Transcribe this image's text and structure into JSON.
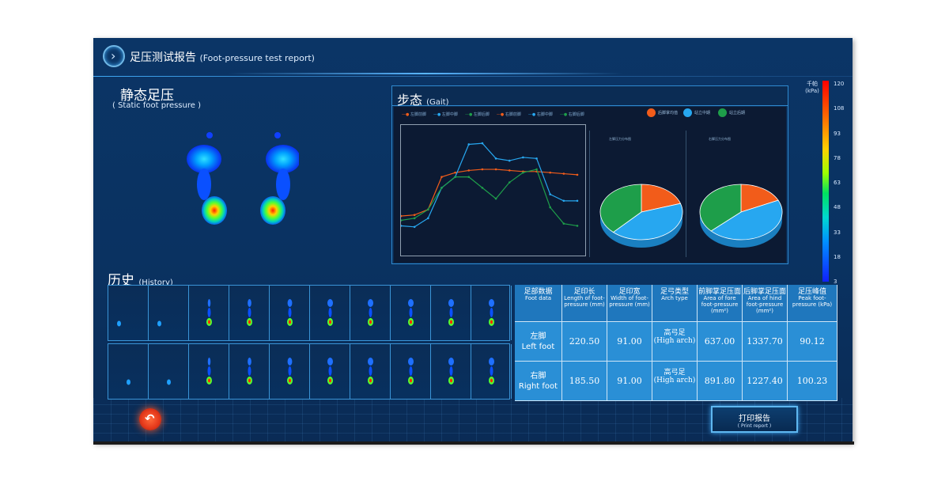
{
  "header": {
    "title_zh": "足压测试报告",
    "title_en": "(Foot-pressure test report)",
    "nav_icon": "chevron-right-icon"
  },
  "static_section": {
    "title_zh": "静态足压",
    "title_en": "( Static foot pressure )"
  },
  "gait_section": {
    "title_zh": "步态",
    "title_en": "(Gait)",
    "line_legend": [
      "左脚前脚",
      "左脚中脚",
      "左脚后脚",
      "右脚前脚",
      "右脚中脚",
      "右脚后脚"
    ],
    "pie_legend": [
      {
        "label": "后脚掌均值",
        "color": "#f25c1a"
      },
      {
        "label": "站立中期",
        "color": "#27a7f0"
      },
      {
        "label": "站立后期",
        "color": "#1e9e4a"
      }
    ],
    "pie_titles": [
      "左脚压力分布图",
      "右脚压力分布图"
    ]
  },
  "colorbar": {
    "unit": "千帕 (kPa)",
    "labels": [
      "120",
      "108",
      "93",
      "78",
      "63",
      "48",
      "33",
      "18",
      "3"
    ]
  },
  "history_section": {
    "title_zh": "历史",
    "title_en": "(History)"
  },
  "table": {
    "headers": [
      {
        "zh": "足部数据",
        "en": "Foot data"
      },
      {
        "zh": "足印长",
        "en": "Length of foot-pressure (mm)"
      },
      {
        "zh": "足印宽",
        "en": "Width of foot-pressure (mm)"
      },
      {
        "zh": "足弓类型",
        "en": "Arch type"
      },
      {
        "zh": "前脚掌足压面",
        "en": "Area of fore foot-pressure (mm²)"
      },
      {
        "zh": "后脚掌足压面",
        "en": "Area of hind foot-pressure (mm²)"
      },
      {
        "zh": "足压峰值",
        "en": "Peak foot-pressure (kPa)"
      }
    ],
    "rows": [
      {
        "label_zh": "左脚",
        "label_en": "Left foot",
        "length": "220.50",
        "width": "91.00",
        "arch_zh": "高弓足",
        "arch_en": "(High arch)",
        "fore_area": "637.00",
        "hind_area": "1337.70",
        "peak": "90.12"
      },
      {
        "label_zh": "右脚",
        "label_en": "Right foot",
        "length": "185.50",
        "width": "91.00",
        "arch_zh": "高弓足",
        "arch_en": "(High arch)",
        "fore_area": "891.80",
        "hind_area": "1227.40",
        "peak": "100.23"
      }
    ]
  },
  "buttons": {
    "print_zh": "打印报告",
    "print_en": "( Print report )",
    "back_icon": "undo-arrow-icon"
  },
  "colors": {
    "panel_border": "#2f8ad0",
    "table_header": "#1f77bd",
    "table_body": "#2a8fd6",
    "back_button": "#e63a1c"
  },
  "chart_data": [
    {
      "type": "line",
      "series": [
        {
          "values": [
            32,
            33,
            38,
            68,
            72,
            74,
            75,
            75,
            74,
            73,
            73,
            72,
            71,
            70
          ]
        },
        {
          "values": [
            23,
            22,
            30,
            58,
            68,
            98,
            99,
            85,
            83,
            86,
            85,
            52,
            46,
            46
          ]
        },
        {
          "values": [
            28,
            30,
            38,
            58,
            68,
            68,
            58,
            48,
            63,
            72,
            75,
            40,
            25,
            23
          ]
        }
      ],
      "ylim": [
        0,
        110
      ]
    },
    {
      "type": "pie",
      "values": [
        20,
        42,
        38
      ]
    },
    {
      "type": "pie",
      "values": [
        18,
        45,
        37
      ]
    }
  ]
}
